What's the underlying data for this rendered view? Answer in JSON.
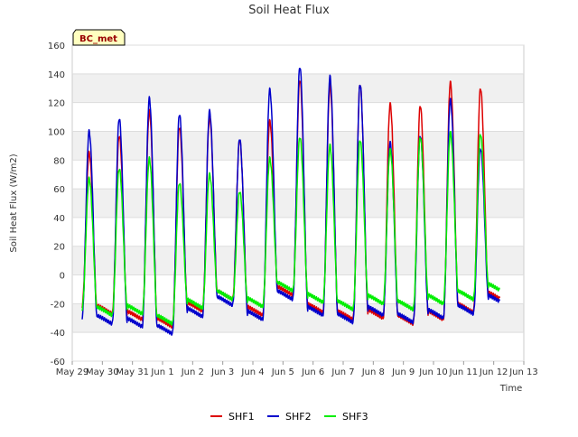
{
  "chart_data": {
    "type": "line",
    "title": "Soil Heat Flux",
    "xlabel": "Time",
    "ylabel": "Soil Heat Flux (W/m2)",
    "ylim": [
      -60,
      160
    ],
    "yticks": [
      -60,
      -40,
      -20,
      0,
      20,
      40,
      60,
      80,
      100,
      120,
      140,
      160
    ],
    "xlim": [
      0,
      15
    ],
    "xtick_labels": [
      "May 29",
      "May 30",
      "May 31",
      "Jun 1",
      "Jun 2",
      "Jun 3",
      "Jun 4",
      "Jun 5",
      "Jun 6",
      "Jun 7",
      "Jun 8",
      "Jun 9",
      "Jun 10",
      "Jun 11",
      "Jun 12",
      "Jun 13"
    ],
    "site_label": "BC_met",
    "grid": "horizontal bands",
    "legend_position": "bottom-center",
    "series": [
      {
        "name": "SHF1",
        "color": "#dd0000",
        "start_day": 0.33,
        "end_day": 14.2,
        "daily_peaks": [
          85,
          97,
          114,
          103,
          110,
          94,
          107,
          136,
          132,
          133,
          119,
          118,
          134,
          130
        ],
        "nightly_minima": [
          -22,
          -27,
          -31,
          -36,
          -25,
          -17,
          -28,
          -14,
          -26,
          -31,
          -30,
          -34,
          -31,
          -26,
          -18
        ]
      },
      {
        "name": "SHF2",
        "color": "#0000cc",
        "start_day": 0.33,
        "end_day": 14.2,
        "daily_peaks": [
          100,
          109,
          123,
          112,
          114,
          95,
          129,
          145,
          138,
          133,
          92,
          97,
          122,
          88
        ],
        "nightly_minima": [
          -30,
          -34,
          -36,
          -41,
          -29,
          -21,
          -31,
          -17,
          -28,
          -33,
          -28,
          -33,
          -30,
          -27,
          -20
        ]
      },
      {
        "name": "SHF3",
        "color": "#00ee00",
        "start_day": 0.33,
        "end_day": 14.2,
        "daily_peaks": [
          67,
          74,
          81,
          64,
          70,
          58,
          81,
          96,
          90,
          94,
          87,
          96,
          99,
          98
        ],
        "nightly_minima": [
          -24,
          -28,
          -27,
          -34,
          -23,
          -17,
          -22,
          -11,
          -19,
          -24,
          -20,
          -24,
          -20,
          -17,
          -12
        ]
      }
    ]
  }
}
